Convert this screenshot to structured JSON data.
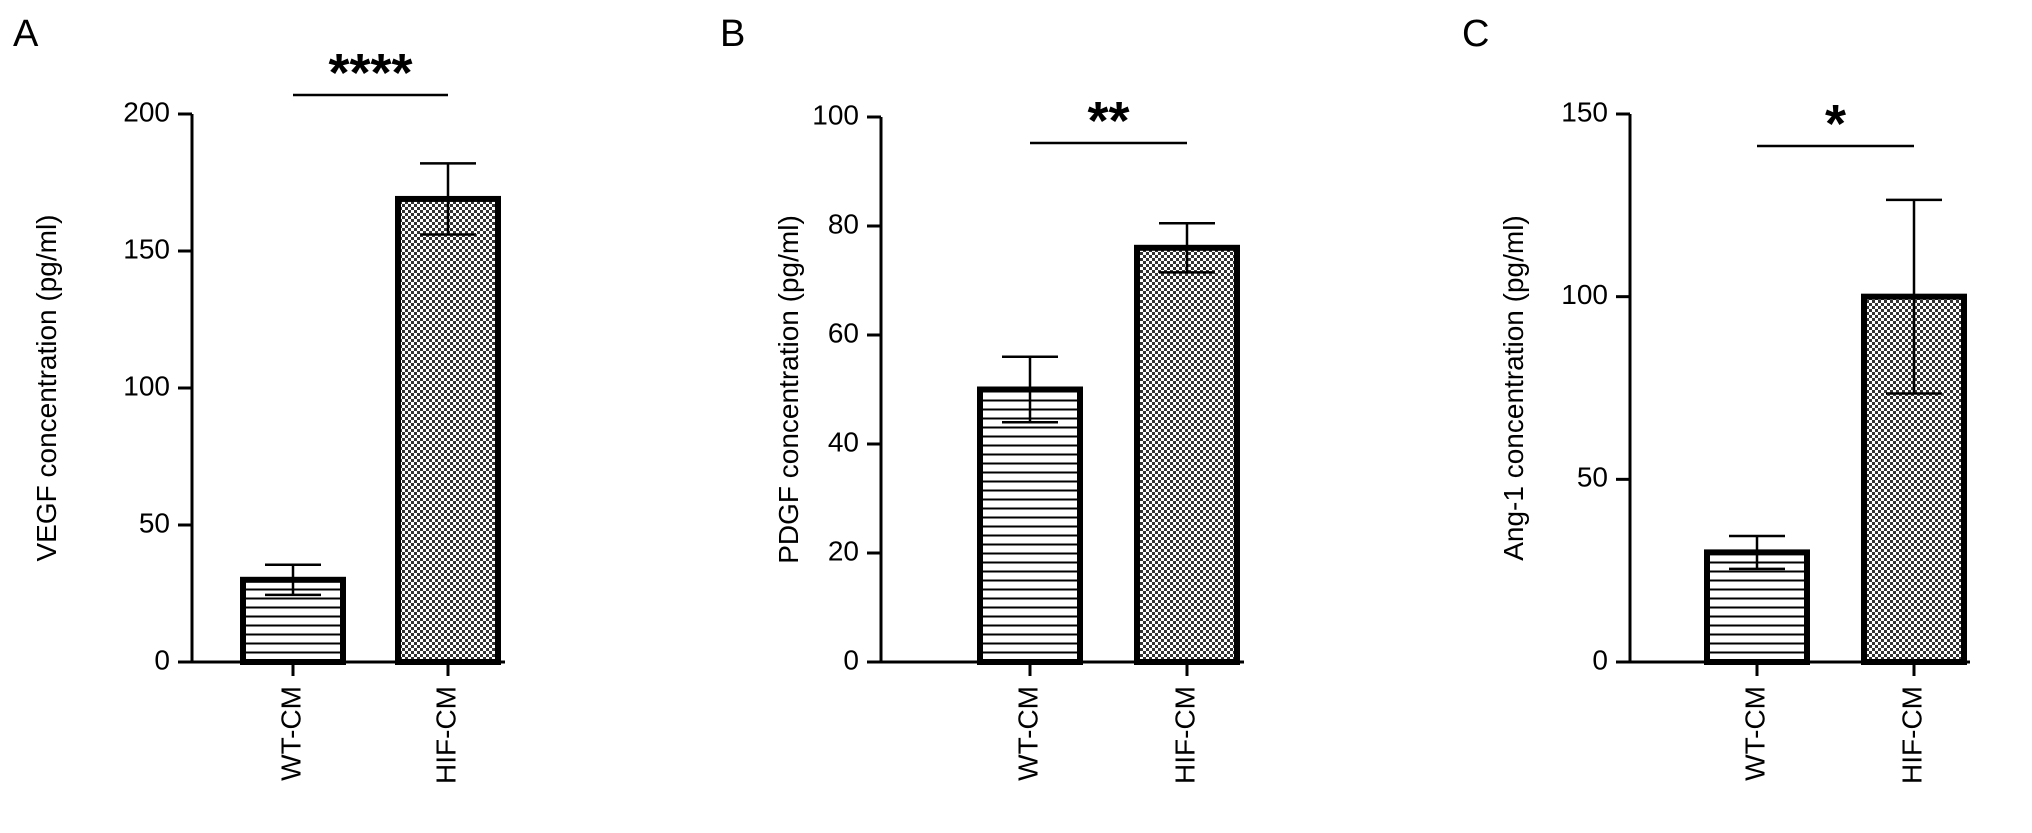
{
  "chart_data": [
    {
      "type": "bar",
      "panel_label": "A",
      "y_label": "VEGF concentration (pg/ml)",
      "categories": [
        "WT-CM",
        "HIF-CM"
      ],
      "values": [
        30,
        169
      ],
      "errors": [
        5.5,
        13
      ],
      "patterns": [
        "horizontal-lines",
        "checker"
      ],
      "color": "#000000",
      "ylim": [
        0,
        200
      ],
      "yticks": [
        0,
        50,
        100,
        150,
        200
      ],
      "significance": "****"
    },
    {
      "type": "bar",
      "panel_label": "B",
      "y_label": "PDGF concentration (pg/ml)",
      "categories": [
        "WT-CM",
        "HIF-CM"
      ],
      "values": [
        50,
        76
      ],
      "errors": [
        6,
        4.5
      ],
      "patterns": [
        "horizontal-lines",
        "checker"
      ],
      "color": "#000000",
      "ylim": [
        0,
        100
      ],
      "yticks": [
        0,
        20,
        40,
        60,
        80,
        100
      ],
      "significance": "**"
    },
    {
      "type": "bar",
      "panel_label": "C",
      "y_label": "Ang-1 concentration (pg/ml)",
      "categories": [
        "WT-CM",
        "HIF-CM"
      ],
      "values": [
        30,
        100
      ],
      "errors": [
        4.5,
        26.5
      ],
      "patterns": [
        "horizontal-lines",
        "checker"
      ],
      "color": "#000000",
      "ylim": [
        0,
        150
      ],
      "yticks": [
        0,
        50,
        100,
        150
      ],
      "significance": "*"
    }
  ]
}
